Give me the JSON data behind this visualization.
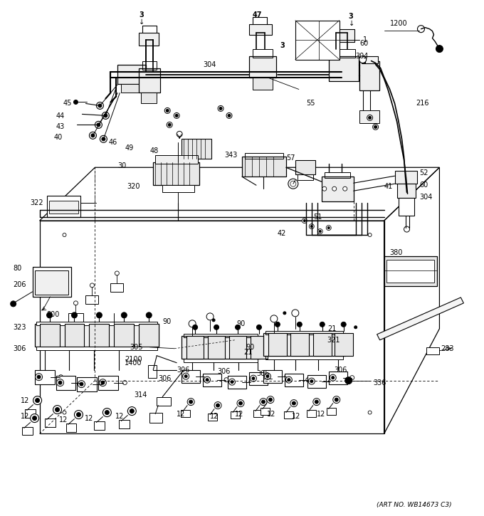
{
  "art_no": "(ART NO. WB14673 C3)",
  "bg_color": "#ffffff",
  "line_color": "#000000",
  "fig_width": 6.8,
  "fig_height": 7.25,
  "dpi": 100
}
